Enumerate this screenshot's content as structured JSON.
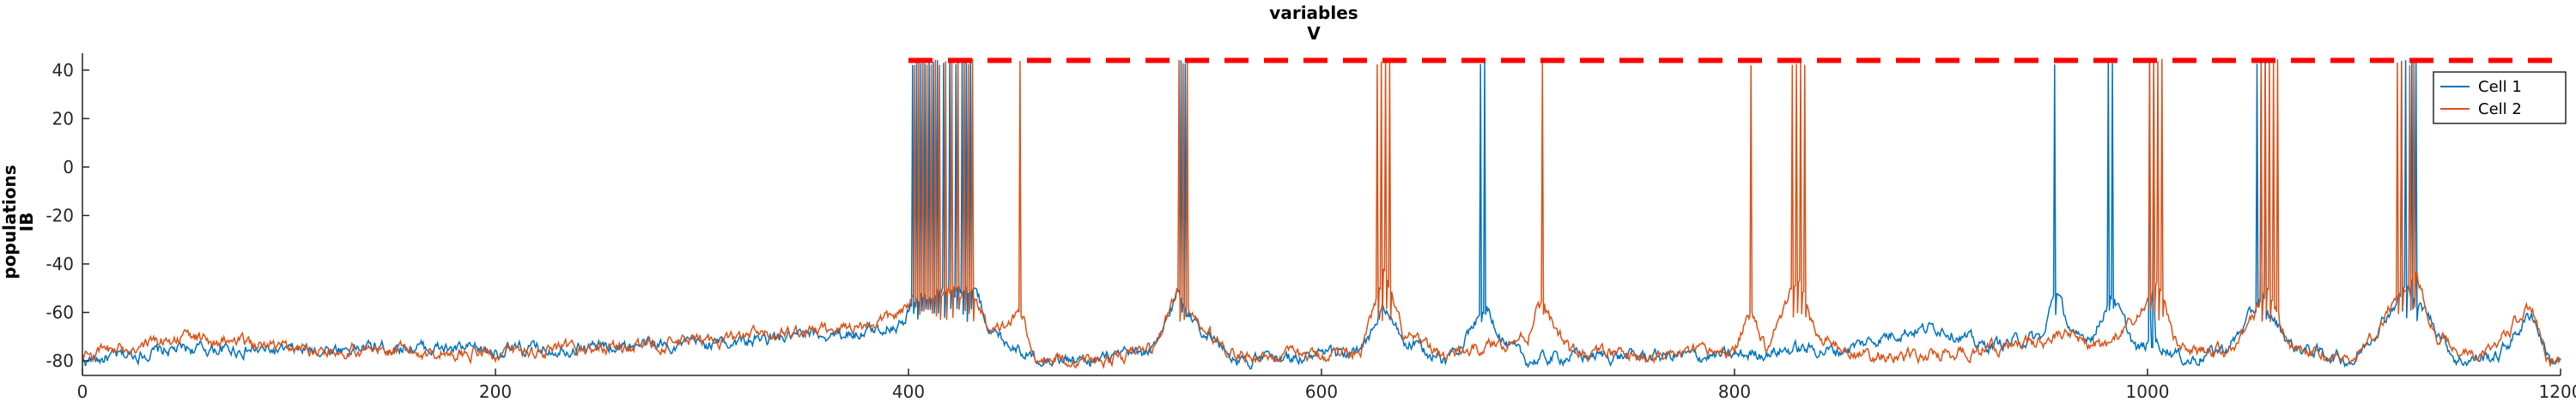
{
  "chart_data": {
    "type": "line",
    "title_lines": [
      "variables",
      "V"
    ],
    "ylabel_lines": [
      "populations",
      "IB"
    ],
    "xlim": [
      0,
      1200
    ],
    "ylim": [
      -86,
      47
    ],
    "x_ticks": [
      0,
      200,
      400,
      600,
      800,
      1000,
      1200
    ],
    "y_ticks": [
      -80,
      -60,
      -40,
      -20,
      0,
      20,
      40
    ],
    "grid": false,
    "legend_position": "top-right",
    "colors": {
      "cell1": "#0072bd",
      "cell2": "#d95319",
      "dash": "#ff0000"
    },
    "series": [
      {
        "name": "Cell 1",
        "color": "#0072bd",
        "baseline": [
          [
            0,
            -80
          ],
          [
            50,
            -75
          ],
          [
            100,
            -76
          ],
          [
            150,
            -74
          ],
          [
            200,
            -76
          ],
          [
            250,
            -74
          ],
          [
            300,
            -73
          ],
          [
            350,
            -70
          ],
          [
            380,
            -68
          ],
          [
            398,
            -64
          ],
          [
            402,
            -56
          ],
          [
            420,
            -52
          ],
          [
            432,
            -50
          ],
          [
            440,
            -68
          ],
          [
            460,
            -78
          ],
          [
            480,
            -80
          ],
          [
            500,
            -79
          ],
          [
            520,
            -75
          ],
          [
            530,
            -52
          ],
          [
            540,
            -65
          ],
          [
            560,
            -80
          ],
          [
            600,
            -78
          ],
          [
            620,
            -76
          ],
          [
            630,
            -58
          ],
          [
            640,
            -72
          ],
          [
            660,
            -80
          ],
          [
            675,
            -64
          ],
          [
            680,
            -58
          ],
          [
            690,
            -74
          ],
          [
            700,
            -80
          ],
          [
            720,
            -78
          ],
          [
            750,
            -78
          ],
          [
            800,
            -78
          ],
          [
            830,
            -75
          ],
          [
            850,
            -76
          ],
          [
            880,
            -68
          ],
          [
            900,
            -66
          ],
          [
            920,
            -74
          ],
          [
            950,
            -70
          ],
          [
            955,
            -50
          ],
          [
            965,
            -72
          ],
          [
            975,
            -68
          ],
          [
            982,
            -52
          ],
          [
            995,
            -76
          ],
          [
            1003,
            -72
          ],
          [
            1020,
            -80
          ],
          [
            1040,
            -74
          ],
          [
            1055,
            -55
          ],
          [
            1070,
            -74
          ],
          [
            1100,
            -80
          ],
          [
            1125,
            -50
          ],
          [
            1135,
            -60
          ],
          [
            1150,
            -80
          ],
          [
            1170,
            -78
          ],
          [
            1186,
            -60
          ],
          [
            1195,
            -80
          ],
          [
            1200,
            -80
          ]
        ],
        "spikes": [
          402,
          404,
          406,
          408,
          410,
          412,
          414,
          417,
          420,
          423,
          426,
          428,
          430,
          532,
          534,
          677,
          679,
          955,
          981,
          983,
          1001,
          1003,
          1053,
          1055,
          1057,
          1123,
          1125,
          1128,
          1130
        ]
      },
      {
        "name": "Cell 2",
        "color": "#d95319",
        "baseline": [
          [
            0,
            -78
          ],
          [
            50,
            -70
          ],
          [
            100,
            -75
          ],
          [
            150,
            -76
          ],
          [
            200,
            -77
          ],
          [
            250,
            -75
          ],
          [
            300,
            -72
          ],
          [
            350,
            -68
          ],
          [
            380,
            -65
          ],
          [
            398,
            -60
          ],
          [
            402,
            -55
          ],
          [
            420,
            -52
          ],
          [
            432,
            -52
          ],
          [
            440,
            -70
          ],
          [
            455,
            -60
          ],
          [
            460,
            -78
          ],
          [
            480,
            -80
          ],
          [
            500,
            -79
          ],
          [
            520,
            -74
          ],
          [
            530,
            -50
          ],
          [
            540,
            -66
          ],
          [
            560,
            -78
          ],
          [
            600,
            -78
          ],
          [
            620,
            -74
          ],
          [
            630,
            -45
          ],
          [
            640,
            -70
          ],
          [
            660,
            -78
          ],
          [
            700,
            -70
          ],
          [
            705,
            -55
          ],
          [
            720,
            -76
          ],
          [
            750,
            -78
          ],
          [
            800,
            -76
          ],
          [
            808,
            -60
          ],
          [
            815,
            -74
          ],
          [
            825,
            -56
          ],
          [
            830,
            -45
          ],
          [
            840,
            -70
          ],
          [
            860,
            -78
          ],
          [
            900,
            -78
          ],
          [
            930,
            -74
          ],
          [
            960,
            -70
          ],
          [
            980,
            -74
          ],
          [
            1000,
            -58
          ],
          [
            1005,
            -46
          ],
          [
            1015,
            -76
          ],
          [
            1040,
            -76
          ],
          [
            1052,
            -60
          ],
          [
            1058,
            -48
          ],
          [
            1068,
            -74
          ],
          [
            1100,
            -80
          ],
          [
            1120,
            -55
          ],
          [
            1130,
            -45
          ],
          [
            1140,
            -70
          ],
          [
            1160,
            -80
          ],
          [
            1186,
            -58
          ],
          [
            1195,
            -82
          ],
          [
            1200,
            -78
          ]
        ],
        "spikes": [
          403,
          405,
          407,
          409,
          411,
          413,
          415,
          418,
          421,
          424,
          427,
          429,
          431,
          454,
          531,
          533,
          535,
          627,
          629,
          631,
          633,
          707,
          808,
          828,
          830,
          832,
          834,
          1001,
          1003,
          1005,
          1007,
          1055,
          1057,
          1059,
          1061,
          1063,
          1121,
          1123,
          1127,
          1129
        ]
      }
    ],
    "threshold_line": {
      "y": 44,
      "x_start": 400,
      "x_end": 1200
    }
  }
}
